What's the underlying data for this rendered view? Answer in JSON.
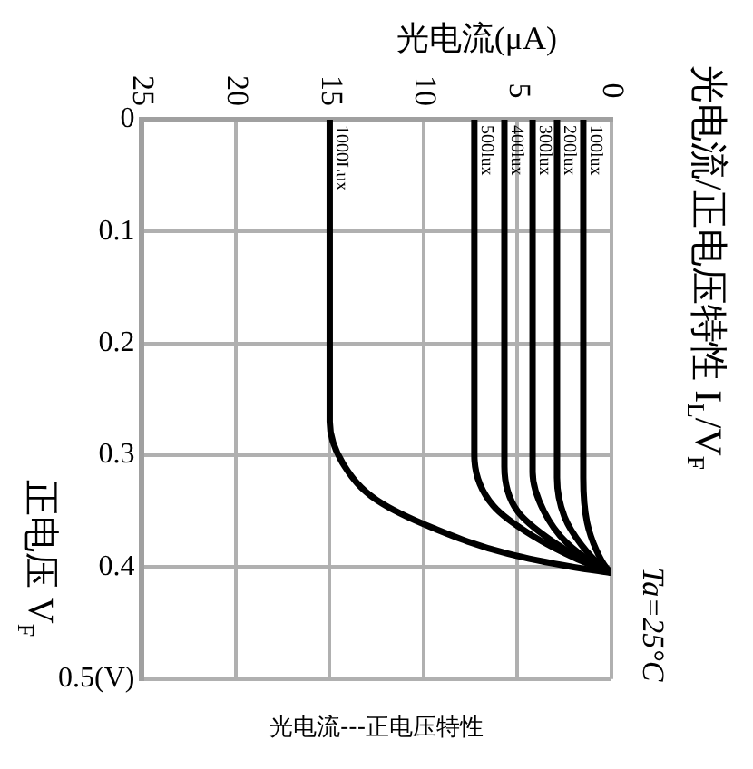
{
  "chart_data": {
    "type": "line",
    "title": "光电流/正电压特性 I$_{L}$/V$_{F}$",
    "xlabel": "光电流(μA)",
    "ylabel": "正电压 V$_{F}$",
    "xlim": [
      25,
      0
    ],
    "xticks": [
      25,
      20,
      15,
      10,
      5,
      0
    ],
    "ylim": [
      0.5,
      0
    ],
    "yticks": [
      0,
      0.1,
      0.2,
      0.3,
      0.4,
      {
        "value": 0.5,
        "label": "0.5(V)"
      }
    ],
    "grid": true,
    "legend": false,
    "marker": "none",
    "line_style": "solid",
    "annotations": [
      "Ta=25°C",
      "光电流---正电压特性"
    ],
    "series": [
      {
        "name": "100lux",
        "color": "#000000",
        "x": [
          1.5,
          1.5,
          1.3,
          0.8,
          0.3,
          0
        ],
        "values": [
          0,
          0.32,
          0.36,
          0.385,
          0.4,
          0.405
        ]
      },
      {
        "name": "200lux",
        "color": "#000000",
        "x": [
          2.9,
          2.9,
          2.5,
          1.6,
          0.6,
          0
        ],
        "values": [
          0,
          0.32,
          0.355,
          0.38,
          0.398,
          0.405
        ]
      },
      {
        "name": "300lux",
        "color": "#000000",
        "x": [
          4.2,
          4.2,
          3.6,
          2.4,
          0.9,
          0
        ],
        "values": [
          0,
          0.315,
          0.35,
          0.378,
          0.397,
          0.405
        ]
      },
      {
        "name": "400lux",
        "color": "#000000",
        "x": [
          5.7,
          5.7,
          5.0,
          3.3,
          1.3,
          0
        ],
        "values": [
          0,
          0.31,
          0.35,
          0.375,
          0.395,
          0.405
        ]
      },
      {
        "name": "500lux",
        "color": "#000000",
        "x": [
          7.3,
          7.3,
          6.3,
          4.2,
          1.8,
          0
        ],
        "values": [
          0,
          0.3,
          0.345,
          0.372,
          0.393,
          0.405
        ]
      },
      {
        "name": "1000Lux",
        "color": "#000000",
        "x": [
          15,
          15,
          14.2,
          12.5,
          9.5,
          5.5,
          2,
          0
        ],
        "values": [
          0,
          0.27,
          0.31,
          0.34,
          0.365,
          0.388,
          0.4,
          0.405
        ]
      }
    ]
  }
}
